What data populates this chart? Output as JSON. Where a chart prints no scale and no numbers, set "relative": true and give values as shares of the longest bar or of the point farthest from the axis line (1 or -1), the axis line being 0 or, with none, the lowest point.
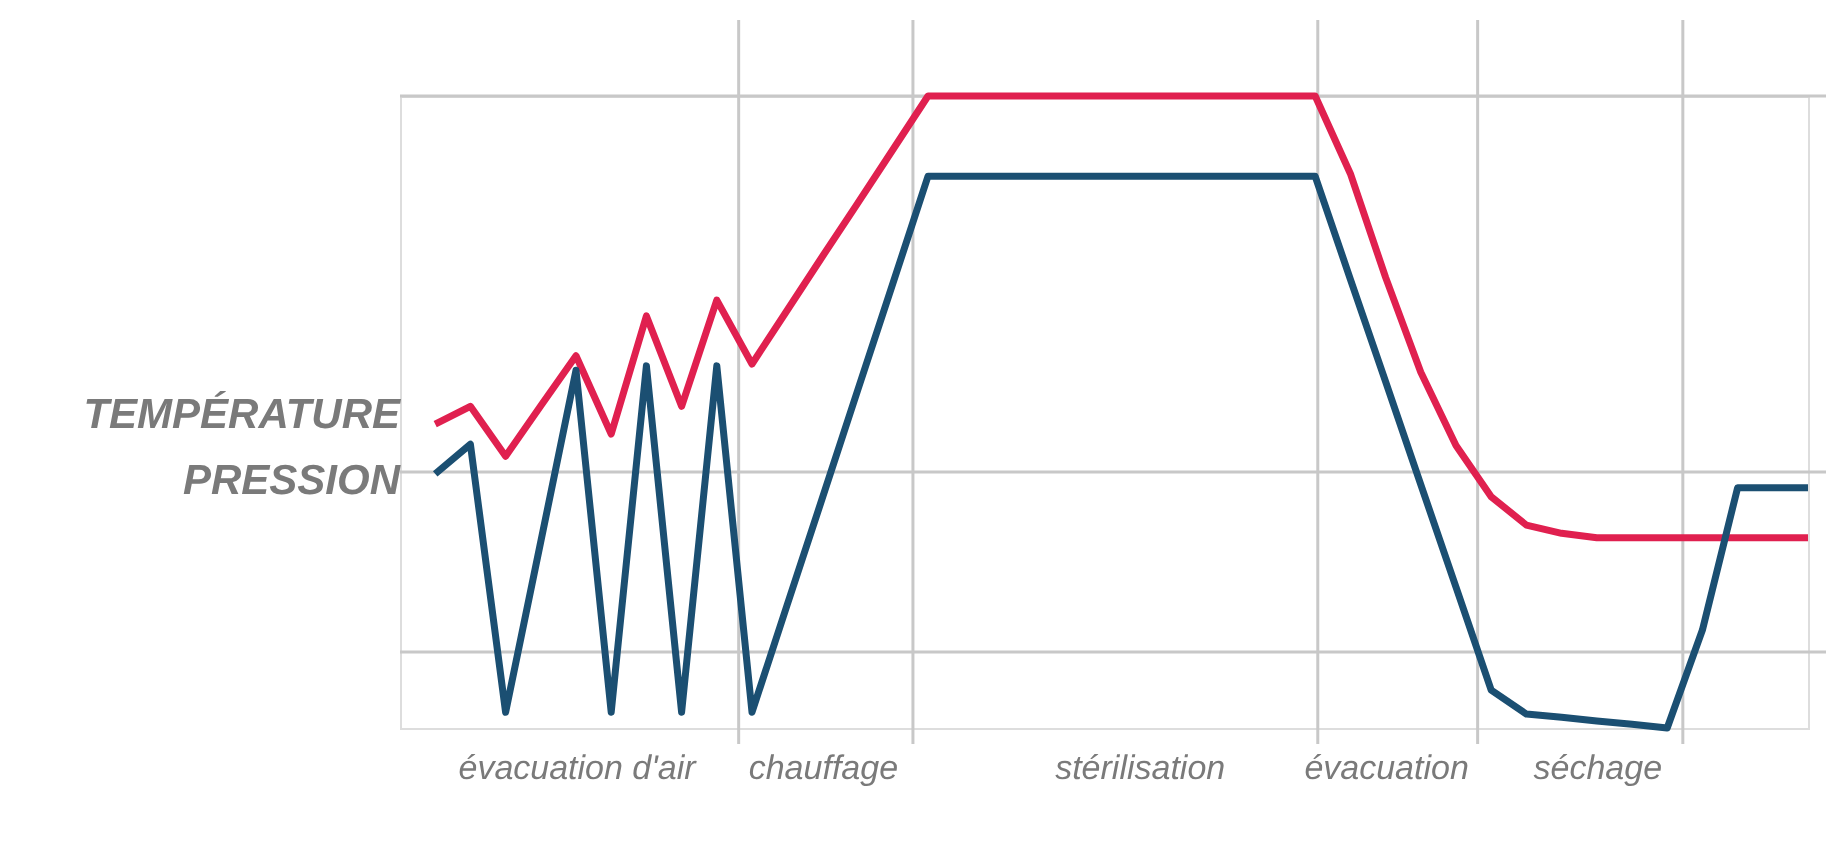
{
  "chart_data": {
    "type": "line",
    "relative": true,
    "tick_labels": "x",
    "grid": true,
    "line_style": "solid",
    "categories": [
      null,
      null,
      null,
      null,
      "évacuation d'air",
      null,
      null,
      null,
      null,
      null,
      null,
      "chauffage",
      null,
      null,
      null,
      null,
      null,
      null,
      null,
      null,
      "stérilisation",
      null,
      null,
      null,
      null,
      null,
      null,
      "évacuation",
      null,
      null,
      null,
      null,
      null,
      "séchage",
      null,
      null,
      null,
      null,
      null,
      null
    ],
    "series": [
      {
        "name": "TEMPÉRATURE",
        "color": "#e0204f",
        "values": [
          0.481,
          0.509,
          0.43,
          0.51,
          0.589,
          0.465,
          0.652,
          0.509,
          0.677,
          0.576,
          0.661,
          0.746,
          0.83,
          0.915,
          1,
          1,
          1,
          1,
          1,
          1,
          1,
          1,
          1,
          1,
          1,
          1,
          0.877,
          0.713,
          0.563,
          0.447,
          0.366,
          0.321,
          0.308,
          0.301,
          0.301,
          0.301,
          0.301,
          0.301,
          0.301,
          0.301
        ]
      },
      {
        "name": "PRESSION",
        "color": "#1b4f72",
        "values": [
          0.402,
          0.449,
          0.025,
          0.295,
          0.566,
          0.025,
          0.573,
          0.025,
          0.573,
          0.025,
          0.195,
          0.364,
          0.534,
          0.703,
          0.873,
          0.873,
          0.873,
          0.873,
          0.873,
          0.873,
          0.873,
          0.873,
          0.873,
          0.873,
          0.873,
          0.873,
          0.71,
          0.548,
          0.385,
          0.223,
          0.06,
          0.022,
          0.017,
          0.011,
          0.006,
          0,
          0.155,
          0.38,
          0.38,
          0.38
        ]
      }
    ]
  }
}
